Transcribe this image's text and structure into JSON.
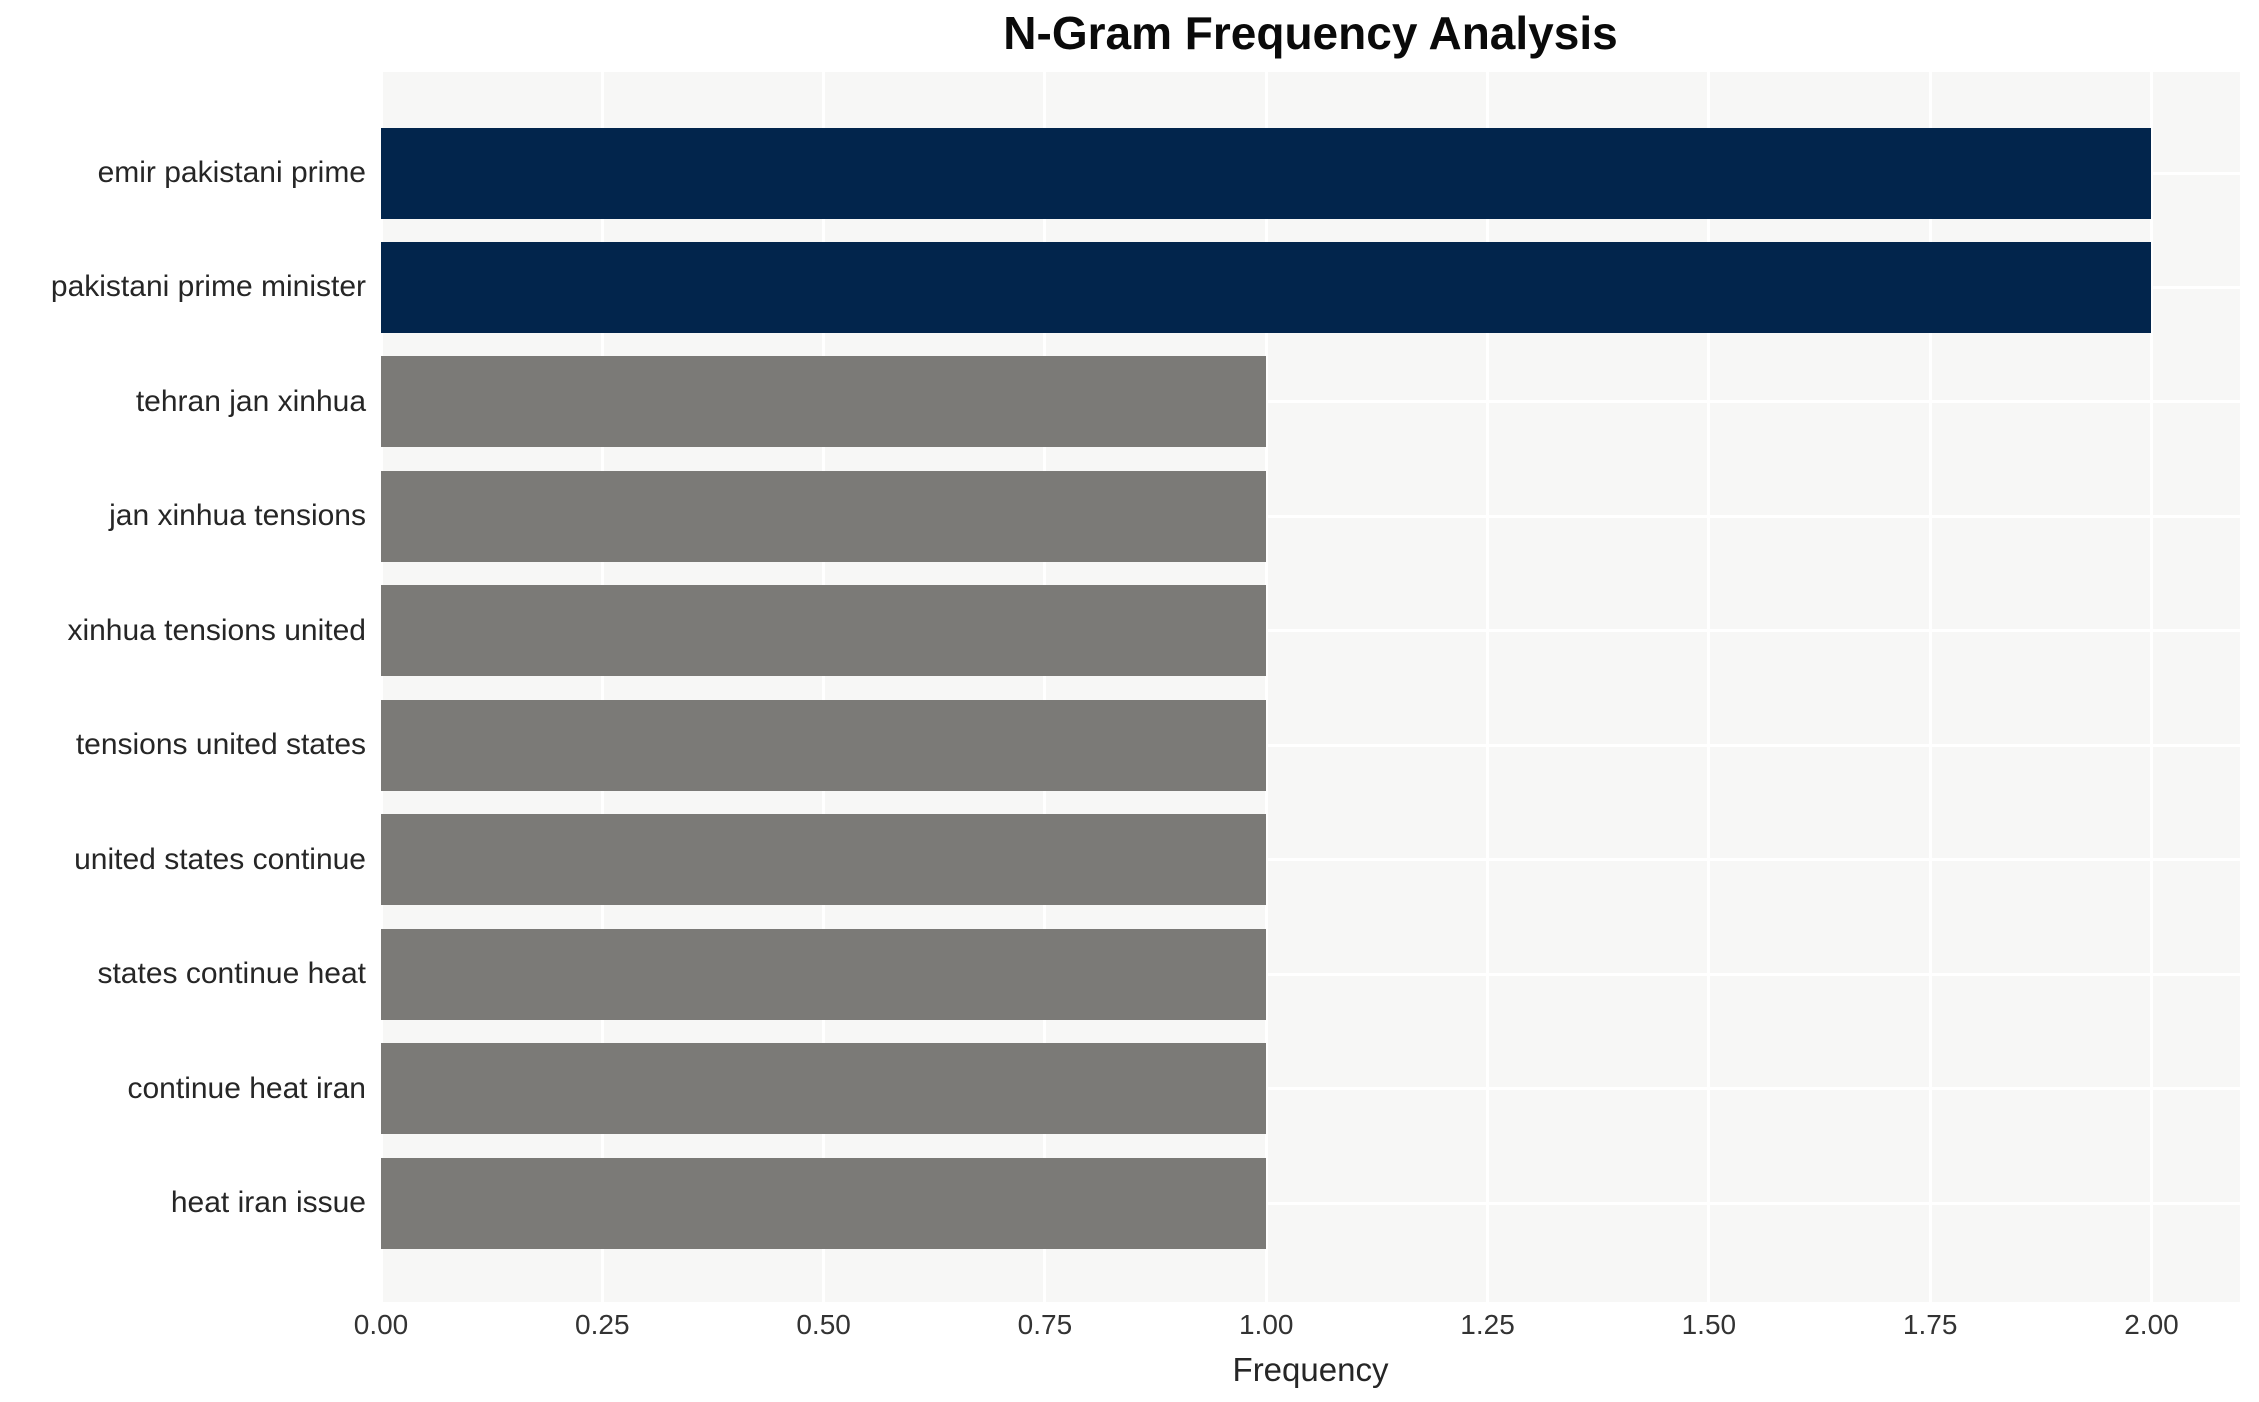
{
  "title": "N-Gram Frequency Analysis",
  "chart_data": {
    "type": "bar",
    "orientation": "horizontal",
    "title": "N-Gram Frequency Analysis",
    "xlabel": "Frequency",
    "ylabel": "",
    "categories": [
      "emir pakistani prime",
      "pakistani prime minister",
      "tehran jan xinhua",
      "jan xinhua tensions",
      "xinhua tensions united",
      "tensions united states",
      "united states continue",
      "states continue heat",
      "continue heat iran",
      "heat iran issue"
    ],
    "values": [
      2,
      2,
      1,
      1,
      1,
      1,
      1,
      1,
      1,
      1
    ],
    "bar_colors": [
      "#02254c",
      "#02254c",
      "#7b7a77",
      "#7b7a77",
      "#7b7a77",
      "#7b7a77",
      "#7b7a77",
      "#7b7a77",
      "#7b7a77",
      "#7b7a77"
    ],
    "highlight_color": "#02254c",
    "base_color": "#7b7a77",
    "plot_background": "#f7f7f6",
    "gridline_color": "#ffffff",
    "grid": "vertical gridlines at each x tick and horizontal gridlines at each bar center, white on light gray",
    "legend": "none",
    "xlim": [
      0,
      2.1
    ],
    "xticks": [
      0,
      0.25,
      0.5,
      0.75,
      1.0,
      1.25,
      1.5,
      1.75,
      2.0
    ],
    "xtick_labels": [
      "0.00",
      "0.25",
      "0.50",
      "0.75",
      "1.00",
      "1.25",
      "1.50",
      "1.75",
      "2.00"
    ]
  }
}
